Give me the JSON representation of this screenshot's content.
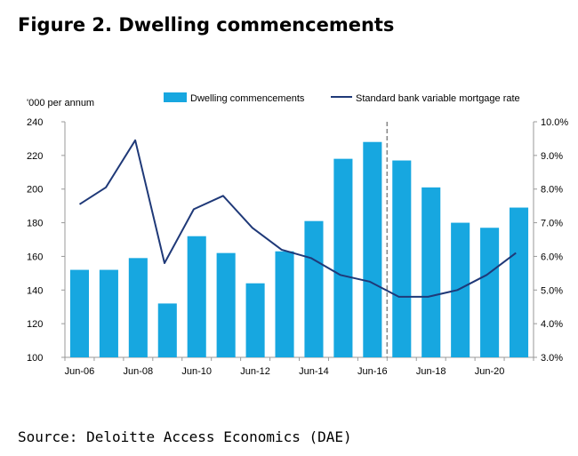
{
  "title": "Figure 2. Dwelling commencements",
  "source": "Source: Deloitte Access Economics (DAE)",
  "chart_data": {
    "type": "bar",
    "left_axis_label": "'000 per annum",
    "legend": {
      "bars": "Dwelling commencements",
      "line": "Standard bank variable mortgage rate"
    },
    "x_tick_labels": [
      "Jun-06",
      "Jun-08",
      "Jun-10",
      "Jun-12",
      "Jun-14",
      "Jun-16",
      "Jun-18",
      "Jun-20"
    ],
    "y_left": {
      "min": 100,
      "max": 240,
      "ticks": [
        "100",
        "120",
        "140",
        "160",
        "180",
        "200",
        "220",
        "240"
      ]
    },
    "y_right": {
      "min": 3.0,
      "max": 10.0,
      "ticks": [
        "3.0%",
        "4.0%",
        "5.0%",
        "6.0%",
        "7.0%",
        "8.0%",
        "9.0%",
        "10.0%"
      ]
    },
    "categories": [
      "2006",
      "2007",
      "2008",
      "2009",
      "2010",
      "2011",
      "2012",
      "2013",
      "2014",
      "2015",
      "2016",
      "2017",
      "2018",
      "2019",
      "2020",
      "2021"
    ],
    "series": [
      {
        "name": "Dwelling commencements",
        "axis": "left",
        "values": [
          152,
          152,
          159,
          132,
          172,
          162,
          144,
          163,
          181,
          218,
          228,
          217,
          201,
          180,
          177,
          189
        ]
      }
    ],
    "line_series": {
      "name": "Standard bank variable mortgage rate",
      "axis": "right",
      "points": [
        [
          2006,
          7.55
        ],
        [
          2006.9,
          8.05
        ],
        [
          2007.9,
          9.45
        ],
        [
          2008.9,
          5.8
        ],
        [
          2009.9,
          7.4
        ],
        [
          2010.9,
          7.8
        ],
        [
          2011.9,
          6.85
        ],
        [
          2012.9,
          6.2
        ],
        [
          2013.9,
          5.95
        ],
        [
          2014.9,
          5.45
        ],
        [
          2015.9,
          5.25
        ],
        [
          2016.9,
          4.8
        ],
        [
          2017.9,
          4.8
        ],
        [
          2018.9,
          5.0
        ],
        [
          2019.9,
          5.45
        ],
        [
          2020.9,
          6.1
        ]
      ]
    },
    "forecast_divider_after": "2016",
    "colors": {
      "bars": "#17a7e0",
      "line": "#1f3978",
      "divider": "#8a8a8a",
      "axis": "#999999"
    },
    "grid": false,
    "legend_position": "top"
  }
}
